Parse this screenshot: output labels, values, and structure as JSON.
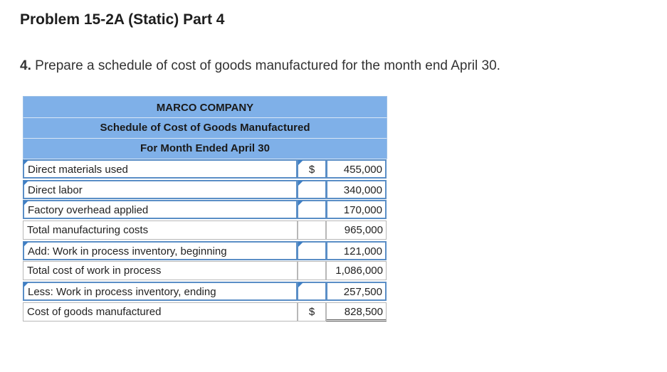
{
  "title": "Problem 15-2A (Static) Part 4",
  "question": {
    "number": "4.",
    "text": "Prepare a schedule of cost of goods manufactured for the month end April 30."
  },
  "schedule": {
    "company": "MARCO COMPANY",
    "heading": "Schedule of Cost of Goods Manufactured",
    "period": "For Month Ended April 30",
    "rows": [
      {
        "label": "Direct materials used",
        "currency": "$",
        "amount": "455,000"
      },
      {
        "label": "Direct labor",
        "currency": "",
        "amount": "340,000"
      },
      {
        "label": "Factory overhead applied",
        "currency": "",
        "amount": "170,000"
      },
      {
        "label": "Total manufacturing costs",
        "currency": "",
        "amount": "965,000"
      },
      {
        "label": "Add: Work in process inventory, beginning",
        "currency": "",
        "amount": "121,000"
      },
      {
        "label": "Total cost of work in process",
        "currency": "",
        "amount": "1,086,000"
      },
      {
        "label": "Less: Work in process inventory, ending",
        "currency": "",
        "amount": "257,500"
      },
      {
        "label": "Cost of goods manufactured",
        "currency": "$",
        "amount": "828,500"
      }
    ]
  }
}
